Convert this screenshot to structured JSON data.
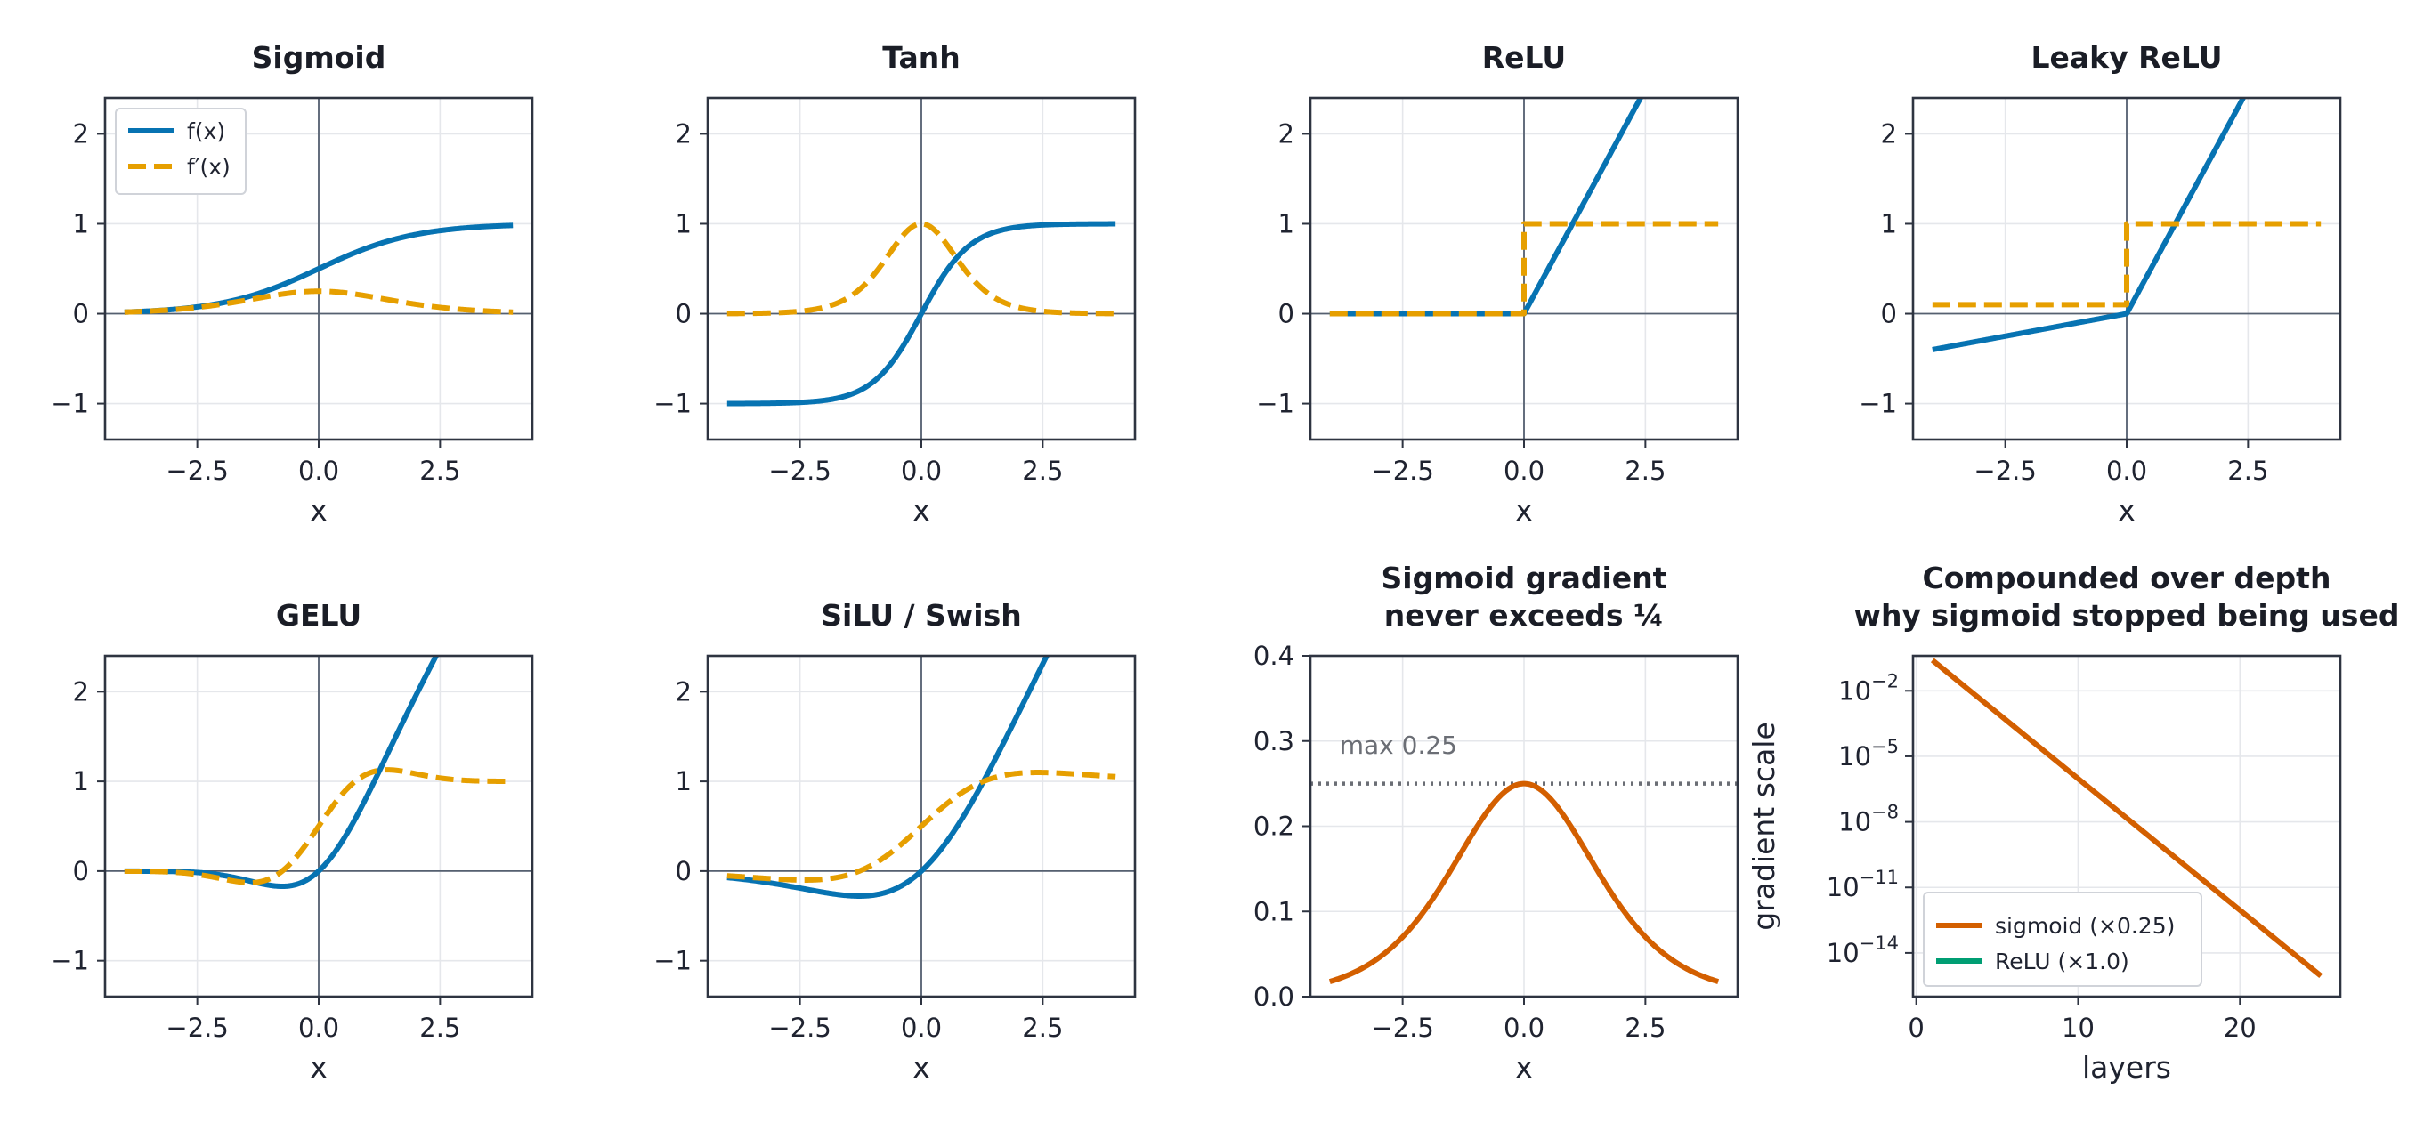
{
  "colors": {
    "f": "#0773b2",
    "df": "#e69f00",
    "sigmoid_grad": "#d35f00",
    "relu_depth": "#009e73",
    "axes": "#2e3441",
    "grid": "#e5e7eb",
    "zero_line": "#556070",
    "ref_line": "#6b6e75",
    "text": "#1f2330"
  },
  "legend_top": {
    "f": "f(x)",
    "df": "f′(x)"
  },
  "chart_data": [
    {
      "type": "line",
      "id": "sigmoid",
      "title": "Sigmoid",
      "fn": "sigmoid",
      "xlabel": "x",
      "ylabel": "",
      "xlim": [
        -4.4,
        4.4
      ],
      "ylim": [
        -1.4,
        2.4
      ],
      "xticks": [
        -2.5,
        0.0,
        2.5
      ],
      "xtick_labels": [
        "−2.5",
        "0.0",
        "2.5"
      ],
      "yticks": [
        -1,
        0,
        1,
        2
      ],
      "ytick_labels": [
        "−1",
        "0",
        "1",
        "2"
      ],
      "grid": true,
      "legend": "upper-left",
      "series": [
        {
          "name": "f(x)",
          "role": "f"
        },
        {
          "name": "f′(x)",
          "role": "df"
        }
      ],
      "x_range": [
        -4,
        4
      ]
    },
    {
      "type": "line",
      "id": "tanh",
      "title": "Tanh",
      "fn": "tanh",
      "xlabel": "x",
      "ylabel": "",
      "xlim": [
        -4.4,
        4.4
      ],
      "ylim": [
        -1.4,
        2.4
      ],
      "xticks": [
        -2.5,
        0.0,
        2.5
      ],
      "xtick_labels": [
        "−2.5",
        "0.0",
        "2.5"
      ],
      "yticks": [
        -1,
        0,
        1,
        2
      ],
      "ytick_labels": [
        "−1",
        "0",
        "1",
        "2"
      ],
      "grid": true,
      "series": [
        {
          "role": "f"
        },
        {
          "role": "df"
        }
      ],
      "x_range": [
        -4,
        4
      ]
    },
    {
      "type": "line",
      "id": "relu",
      "title": "ReLU",
      "fn": "relu",
      "xlabel": "x",
      "ylabel": "",
      "xlim": [
        -4.4,
        4.4
      ],
      "ylim": [
        -1.4,
        2.4
      ],
      "xticks": [
        -2.5,
        0.0,
        2.5
      ],
      "xtick_labels": [
        "−2.5",
        "0.0",
        "2.5"
      ],
      "yticks": [
        -1,
        0,
        1,
        2
      ],
      "ytick_labels": [
        "−1",
        "0",
        "1",
        "2"
      ],
      "grid": true,
      "series": [
        {
          "role": "f"
        },
        {
          "role": "df"
        }
      ],
      "x_range": [
        -4,
        4
      ]
    },
    {
      "type": "line",
      "id": "leaky_relu",
      "title": "Leaky ReLU",
      "fn": "leaky_relu",
      "xlabel": "x",
      "ylabel": "",
      "xlim": [
        -4.4,
        4.4
      ],
      "ylim": [
        -1.4,
        2.4
      ],
      "xticks": [
        -2.5,
        0.0,
        2.5
      ],
      "xtick_labels": [
        "−2.5",
        "0.0",
        "2.5"
      ],
      "yticks": [
        -1,
        0,
        1,
        2
      ],
      "ytick_labels": [
        "−1",
        "0",
        "1",
        "2"
      ],
      "grid": true,
      "negative_slope": 0.1,
      "series": [
        {
          "role": "f"
        },
        {
          "role": "df"
        }
      ],
      "x_range": [
        -4,
        4
      ]
    },
    {
      "type": "line",
      "id": "gelu",
      "title": "GELU",
      "fn": "gelu",
      "xlabel": "x",
      "ylabel": "",
      "xlim": [
        -4.4,
        4.4
      ],
      "ylim": [
        -1.4,
        2.4
      ],
      "xticks": [
        -2.5,
        0.0,
        2.5
      ],
      "xtick_labels": [
        "−2.5",
        "0.0",
        "2.5"
      ],
      "yticks": [
        -1,
        0,
        1,
        2
      ],
      "ytick_labels": [
        "−1",
        "0",
        "1",
        "2"
      ],
      "grid": true,
      "series": [
        {
          "role": "f"
        },
        {
          "role": "df"
        }
      ],
      "x_range": [
        -4,
        4
      ]
    },
    {
      "type": "line",
      "id": "silu",
      "title": "SiLU / Swish",
      "fn": "silu",
      "xlabel": "x",
      "ylabel": "",
      "xlim": [
        -4.4,
        4.4
      ],
      "ylim": [
        -1.4,
        2.4
      ],
      "xticks": [
        -2.5,
        0.0,
        2.5
      ],
      "xtick_labels": [
        "−2.5",
        "0.0",
        "2.5"
      ],
      "yticks": [
        -1,
        0,
        1,
        2
      ],
      "ytick_labels": [
        "−1",
        "0",
        "1",
        "2"
      ],
      "grid": true,
      "series": [
        {
          "role": "f"
        },
        {
          "role": "df"
        }
      ],
      "x_range": [
        -4,
        4
      ]
    },
    {
      "type": "line",
      "id": "sigmoid_gradient",
      "title": [
        "Sigmoid gradient",
        "never exceeds ¼"
      ],
      "fn": "sigmoid_grad",
      "xlabel": "x",
      "ylabel": "",
      "xlim": [
        -4.4,
        4.4
      ],
      "ylim": [
        0.0,
        0.4
      ],
      "xticks": [
        -2.5,
        0.0,
        2.5
      ],
      "xtick_labels": [
        "−2.5",
        "0.0",
        "2.5"
      ],
      "yticks": [
        0.0,
        0.1,
        0.2,
        0.3,
        0.4
      ],
      "ytick_labels": [
        "0.0",
        "0.1",
        "0.2",
        "0.3",
        "0.4"
      ],
      "grid": true,
      "series": [
        {
          "role": "sigmoid_grad"
        }
      ],
      "x_range": [
        -4,
        4
      ],
      "reference_line": {
        "y": 0.25,
        "label": "max 0.25",
        "label_x": -3.8,
        "label_y": 0.285
      }
    },
    {
      "type": "line",
      "id": "depth",
      "title": [
        "Compounded over depth",
        "why sigmoid stopped being used"
      ],
      "fn": "depth",
      "xlabel": "layers",
      "ylabel": "gradient scale",
      "xlim": [
        -0.2,
        26.2
      ],
      "ylog": true,
      "ylim_log10": [
        -16.0,
        -0.4
      ],
      "xticks": [
        0,
        10,
        20
      ],
      "xtick_labels": [
        "0",
        "10",
        "20"
      ],
      "yticks_log10": [
        -2,
        -5,
        -8,
        -11,
        -14
      ],
      "ytick_mantissa": "10",
      "ytick_exponents": [
        "−2",
        "−5",
        "−8",
        "−11",
        "−14"
      ],
      "grid": true,
      "legend": "lower-left",
      "layers": [
        1,
        25
      ],
      "series": [
        {
          "name": "sigmoid (×0.25)",
          "role": "sigmoid_depth",
          "factor": 0.25
        },
        {
          "name": "ReLU (×1.0)",
          "role": "relu_depth",
          "factor": 1.0
        }
      ]
    }
  ]
}
